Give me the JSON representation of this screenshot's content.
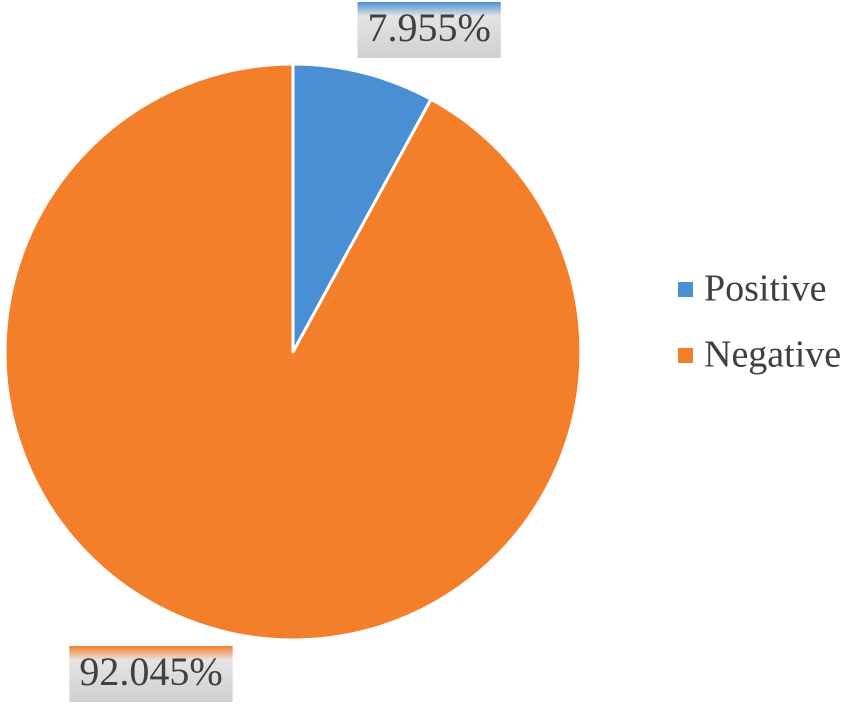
{
  "chart_data": {
    "type": "pie",
    "categories": [
      "Positive",
      "Negative"
    ],
    "values": [
      7.955,
      92.045
    ],
    "value_labels": [
      "7.955%",
      "92.045%"
    ],
    "colors": [
      "#4a8fd4",
      "#f47f2b"
    ],
    "legend": "right"
  }
}
